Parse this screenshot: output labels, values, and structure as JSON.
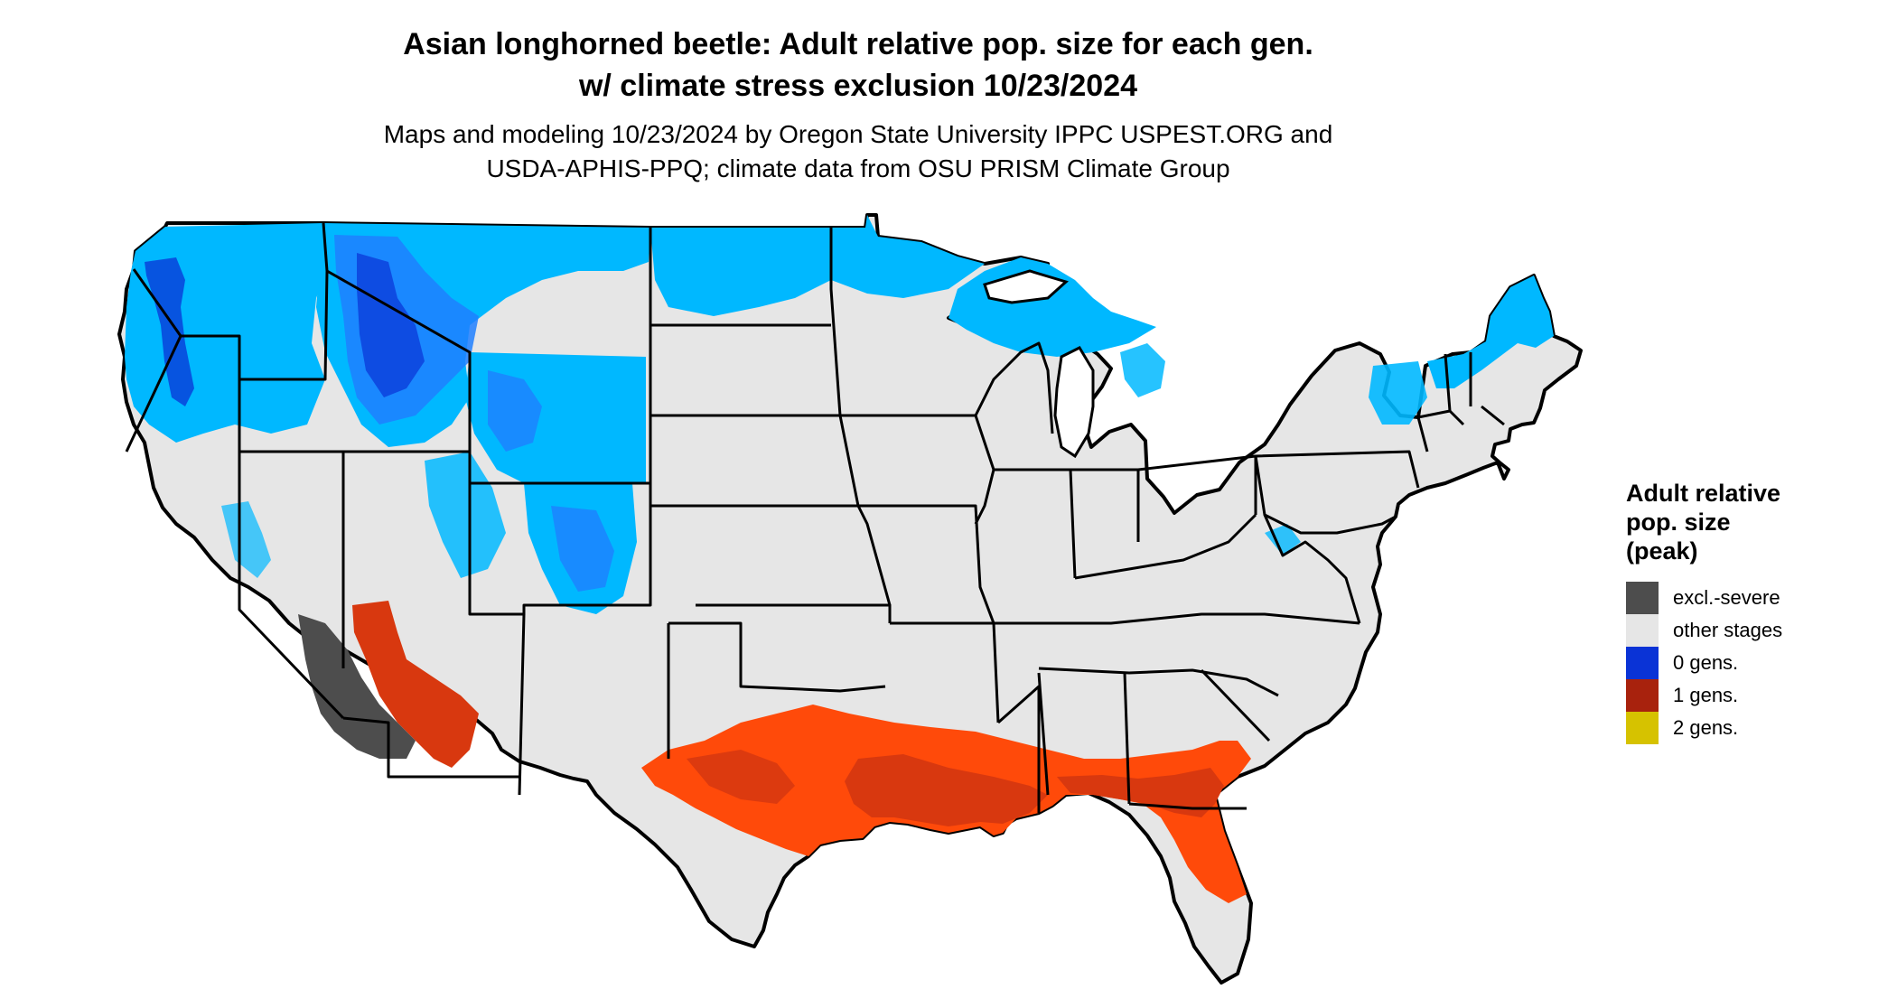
{
  "title": {
    "line1": "Asian longhorned beetle: Adult relative pop. size for each gen.",
    "line2": "w/ climate stress exclusion 10/23/2024"
  },
  "subtitle": {
    "line1": "Maps and modeling 10/23/2024 by Oregon State University IPPC USPEST.ORG and",
    "line2": "USDA-APHIS-PPQ; climate data from OSU PRISM Climate Group"
  },
  "legend": {
    "title_lines": [
      "Adult relative",
      "pop. size",
      "(peak)"
    ],
    "items": [
      {
        "label": "excl.-severe",
        "color": "#4d4d4d"
      },
      {
        "label": "other stages",
        "color": "#e6e6e6"
      },
      {
        "label": "0 gens.",
        "color": "#0a33d6"
      },
      {
        "label": "1 gens.",
        "color": "#a8220d"
      },
      {
        "label": "2 gens.",
        "color": "#d6c200"
      }
    ]
  },
  "map_colors": {
    "land": "#e6e6e6",
    "light_blue": "#00b8ff",
    "mid_blue": "#1e7fff",
    "dark_blue": "#0a33d6",
    "bright_red": "#ff4a0a",
    "red": "#d8380f",
    "dark_red": "#a8220d",
    "excl_severe": "#4d4d4d",
    "border": "#000000"
  }
}
